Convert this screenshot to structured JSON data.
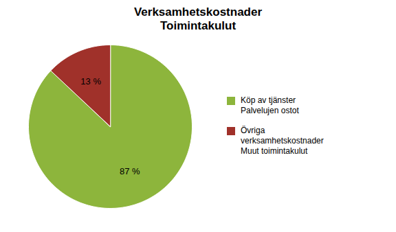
{
  "chart_data": {
    "type": "pie",
    "title": "Verksamhetskostnader\nToimintakulut",
    "categories": [
      "Köp av tjänster\nPalvelujen ostot",
      "Övriga\nverksamhetskostnader\nMuut toimintakulut"
    ],
    "values": [
      87,
      13
    ],
    "value_labels": [
      "87 %",
      "13 %"
    ],
    "data_labels": true,
    "colors": [
      "#8db53c",
      "#a0312a"
    ],
    "legend": "right"
  }
}
